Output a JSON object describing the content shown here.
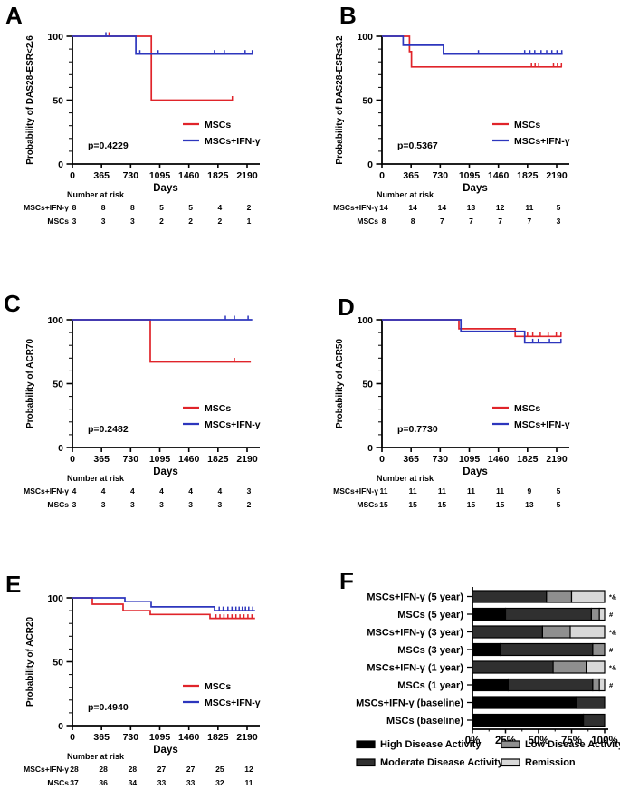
{
  "figure": {
    "panels": [
      {
        "letter": "A"
      },
      {
        "letter": "B"
      },
      {
        "letter": "C"
      },
      {
        "letter": "D"
      },
      {
        "letter": "E"
      },
      {
        "letter": "F"
      }
    ]
  },
  "colors": {
    "mscs_red": "#e0242a",
    "ifn_blue": "#2d36bd"
  },
  "chart_data": [
    {
      "panel": "A",
      "type": "line",
      "subtype": "kaplan-meier",
      "ylabel": "Probability of DAS28-ESR<2.6",
      "xlabel": "Days",
      "xticks": [
        0,
        365,
        730,
        1095,
        1460,
        1825,
        2190
      ],
      "yticks": [
        0,
        50,
        100
      ],
      "xlim": [
        0,
        2400
      ],
      "ylim": [
        0,
        100
      ],
      "p_value": "p=0.4229",
      "legend": [
        {
          "name": "MSCs",
          "color": "#e0242a"
        },
        {
          "name": "MSCs+IFN-γ",
          "color": "#2d36bd"
        }
      ],
      "series": [
        {
          "name": "MSCs",
          "color": "#e0242a",
          "steps": [
            [
              0,
              100
            ],
            [
              990,
              100
            ],
            [
              990,
              50
            ],
            [
              2005,
              50
            ]
          ],
          "censors": [
            [
              460,
              100
            ],
            [
              2005,
              50
            ]
          ]
        },
        {
          "name": "MSCs+IFN-γ",
          "color": "#2d36bd",
          "steps": [
            [
              0,
              100
            ],
            [
              795,
              100
            ],
            [
              795,
              86
            ],
            [
              2260,
              86
            ]
          ],
          "censors": [
            [
              420,
              100
            ],
            [
              845,
              86
            ],
            [
              1075,
              86
            ],
            [
              1780,
              86
            ],
            [
              1905,
              86
            ],
            [
              2165,
              86
            ],
            [
              2255,
              86
            ]
          ]
        }
      ],
      "risk_table": {
        "header": "Number at risk",
        "rows": [
          {
            "name": "MSCs+IFN-γ",
            "color": "#2d36bd",
            "values": [
              8,
              8,
              8,
              5,
              5,
              4,
              2
            ]
          },
          {
            "name": "MSCs",
            "color": "#e0242a",
            "values": [
              3,
              3,
              3,
              2,
              2,
              2,
              1
            ]
          }
        ]
      },
      "layout": {
        "plot_top": 40
      }
    },
    {
      "panel": "B",
      "type": "line",
      "subtype": "kaplan-meier",
      "ylabel": "Probability of DAS28-ESR≤3.2",
      "xlabel": "Days",
      "xticks": [
        0,
        365,
        730,
        1095,
        1460,
        1825,
        2190
      ],
      "yticks": [
        0,
        50,
        100
      ],
      "xlim": [
        0,
        2400
      ],
      "ylim": [
        0,
        100
      ],
      "p_value": "p=0.5367",
      "legend": [
        {
          "name": "MSCs",
          "color": "#e0242a"
        },
        {
          "name": "MSCs+IFN-γ",
          "color": "#2d36bd"
        }
      ],
      "series": [
        {
          "name": "MSCs",
          "color": "#e0242a",
          "steps": [
            [
              0,
              100
            ],
            [
              345,
              100
            ],
            [
              345,
              88
            ],
            [
              370,
              88
            ],
            [
              370,
              76
            ],
            [
              2255,
              76
            ]
          ],
          "censors": [
            [
              1875,
              76
            ],
            [
              1920,
              76
            ],
            [
              1965,
              76
            ],
            [
              2150,
              76
            ],
            [
              2200,
              76
            ],
            [
              2250,
              76
            ]
          ]
        },
        {
          "name": "MSCs+IFN-γ",
          "color": "#2d36bd",
          "steps": [
            [
              0,
              100
            ],
            [
              265,
              100
            ],
            [
              265,
              93
            ],
            [
              770,
              93
            ],
            [
              770,
              86
            ],
            [
              2265,
              86
            ]
          ],
          "censors": [
            [
              1210,
              86
            ],
            [
              1790,
              86
            ],
            [
              1855,
              86
            ],
            [
              1915,
              86
            ],
            [
              1995,
              86
            ],
            [
              2065,
              86
            ],
            [
              2130,
              86
            ],
            [
              2195,
              86
            ],
            [
              2255,
              86
            ]
          ]
        }
      ],
      "risk_table": {
        "header": "Number at risk",
        "rows": [
          {
            "name": "MSCs+IFN-γ",
            "color": "#2d36bd",
            "values": [
              14,
              14,
              14,
              13,
              12,
              11,
              5
            ]
          },
          {
            "name": "MSCs",
            "color": "#e0242a",
            "values": [
              8,
              8,
              7,
              7,
              7,
              7,
              3
            ]
          }
        ]
      },
      "layout": {
        "plot_top": 40
      }
    },
    {
      "panel": "C",
      "type": "line",
      "subtype": "kaplan-meier",
      "ylabel": "Probability of ACR70",
      "xlabel": "Days",
      "xticks": [
        0,
        365,
        730,
        1095,
        1460,
        1825,
        2190
      ],
      "yticks": [
        0,
        50,
        100
      ],
      "xlim": [
        0,
        2400
      ],
      "ylim": [
        0,
        100
      ],
      "p_value": "p=0.2482",
      "legend": [
        {
          "name": "MSCs",
          "color": "#e0242a"
        },
        {
          "name": "MSCs+IFN-γ",
          "color": "#2d36bd"
        }
      ],
      "series": [
        {
          "name": "MSCs",
          "color": "#e0242a",
          "steps": [
            [
              0,
              100
            ],
            [
              976,
              100
            ],
            [
              976,
              67
            ],
            [
              2236,
              67
            ]
          ],
          "censors": [
            [
              2031,
              67
            ]
          ]
        },
        {
          "name": "MSCs+IFN-γ",
          "color": "#2d36bd",
          "steps": [
            [
              0,
              100
            ],
            [
              2255,
              100
            ]
          ],
          "censors": [
            [
              1918,
              100
            ],
            [
              2031,
              100
            ],
            [
              2202,
              100
            ]
          ]
        }
      ],
      "risk_table": {
        "header": "Number at risk",
        "rows": [
          {
            "name": "MSCs+IFN-γ",
            "color": "#2d36bd",
            "values": [
              4,
              4,
              4,
              4,
              4,
              4,
              3
            ]
          },
          {
            "name": "MSCs",
            "color": "#e0242a",
            "values": [
              3,
              3,
              3,
              3,
              3,
              3,
              2
            ]
          }
        ]
      },
      "layout": {
        "plot_top": 53
      }
    },
    {
      "panel": "D",
      "type": "line",
      "subtype": "kaplan-meier",
      "ylabel": "Probability of ACR50",
      "xlabel": "Days",
      "xticks": [
        0,
        365,
        730,
        1095,
        1460,
        1825,
        2190
      ],
      "yticks": [
        0,
        50,
        100
      ],
      "xlim": [
        0,
        2400
      ],
      "ylim": [
        0,
        100
      ],
      "p_value": "p=0.7730",
      "legend": [
        {
          "name": "MSCs",
          "color": "#e0242a"
        },
        {
          "name": "MSCs+IFN-γ",
          "color": "#2d36bd"
        }
      ],
      "series": [
        {
          "name": "MSCs",
          "color": "#e0242a",
          "steps": [
            [
              0,
              100
            ],
            [
              965,
              100
            ],
            [
              965,
              93
            ],
            [
              1670,
              93
            ],
            [
              1670,
              87
            ],
            [
              2250,
              87
            ]
          ],
          "censors": [
            [
              1825,
              87
            ],
            [
              1890,
              87
            ],
            [
              1985,
              87
            ],
            [
              2085,
              87
            ],
            [
              2185,
              87
            ],
            [
              2245,
              87
            ]
          ]
        },
        {
          "name": "MSCs+IFN-γ",
          "color": "#2d36bd",
          "steps": [
            [
              0,
              100
            ],
            [
              990,
              100
            ],
            [
              990,
              91
            ],
            [
              1790,
              91
            ],
            [
              1790,
              82
            ],
            [
              2250,
              82
            ]
          ],
          "censors": [
            [
              1890,
              82
            ],
            [
              1960,
              82
            ],
            [
              2100,
              82
            ],
            [
              2245,
              82
            ]
          ]
        }
      ],
      "risk_table": {
        "header": "Number at risk",
        "rows": [
          {
            "name": "MSCs+IFN-γ",
            "color": "#2d36bd",
            "values": [
              11,
              11,
              11,
              11,
              11,
              9,
              5
            ]
          },
          {
            "name": "MSCs",
            "color": "#e0242a",
            "values": [
              15,
              15,
              15,
              15,
              15,
              13,
              5
            ]
          }
        ]
      },
      "layout": {
        "plot_top": 53
      }
    },
    {
      "panel": "E",
      "type": "line",
      "subtype": "kaplan-meier",
      "ylabel": "Probability of ACR20",
      "xlabel": "Days",
      "xticks": [
        0,
        365,
        730,
        1095,
        1460,
        1825,
        2190
      ],
      "yticks": [
        0,
        50,
        100
      ],
      "xlim": [
        0,
        2400
      ],
      "ylim": [
        0,
        100
      ],
      "p_value": "p=0.4940",
      "legend": [
        {
          "name": "MSCs",
          "color": "#e0242a"
        },
        {
          "name": "MSCs+IFN-γ",
          "color": "#2d36bd"
        }
      ],
      "series": [
        {
          "name": "MSCs",
          "color": "#e0242a",
          "steps": [
            [
              0,
              100
            ],
            [
              250,
              100
            ],
            [
              250,
              95
            ],
            [
              635,
              95
            ],
            [
              635,
              90
            ],
            [
              976,
              90
            ],
            [
              976,
              87
            ],
            [
              1725,
              87
            ],
            [
              1725,
              84
            ],
            [
              2290,
              84
            ]
          ],
          "censors": [
            [
              1800,
              84
            ],
            [
              1850,
              84
            ],
            [
              1900,
              84
            ],
            [
              1950,
              84
            ],
            [
              2000,
              84
            ],
            [
              2050,
              84
            ],
            [
              2100,
              84
            ],
            [
              2150,
              84
            ],
            [
              2200,
              84
            ],
            [
              2250,
              84
            ]
          ]
        },
        {
          "name": "MSCs+IFN-γ",
          "color": "#2d36bd",
          "steps": [
            [
              0,
              100
            ],
            [
              658,
              100
            ],
            [
              658,
              97
            ],
            [
              987,
              97
            ],
            [
              987,
              93
            ],
            [
              1782,
              93
            ],
            [
              1782,
              90
            ],
            [
              2290,
              90
            ]
          ],
          "censors": [
            [
              1840,
              90
            ],
            [
              1890,
              90
            ],
            [
              1950,
              90
            ],
            [
              2000,
              90
            ],
            [
              2050,
              90
            ],
            [
              2090,
              90
            ],
            [
              2130,
              90
            ],
            [
              2170,
              90
            ],
            [
              2210,
              90
            ],
            [
              2260,
              90
            ]
          ]
        }
      ],
      "risk_table": {
        "header": "Number at risk",
        "rows": [
          {
            "name": "MSCs+IFN-γ",
            "color": "#2d36bd",
            "values": [
              28,
              28,
              28,
              27,
              27,
              25,
              12
            ]
          },
          {
            "name": "MSCs",
            "color": "#e0242a",
            "values": [
              37,
              36,
              34,
              33,
              33,
              32,
              11
            ]
          }
        ]
      },
      "layout": {
        "plot_top": 60
      }
    },
    {
      "panel": "F",
      "type": "bar",
      "orientation": "horizontal",
      "stacked": true,
      "categories": [
        "MSCs+IFN-γ (5 year)",
        "MSCs (5 year)",
        "MSCs+IFN-γ (3 year)",
        "MSCs (3 year)",
        "MSCs+IFN-γ (1 year)",
        "MSCs (1 year)",
        "MSCs+IFN-γ (baseline)",
        "MSCs (baseline)"
      ],
      "series": [
        {
          "name": "High Disease Activity",
          "color": "#000000",
          "values": [
            0,
            25,
            0,
            21,
            0,
            27,
            79,
            84
          ]
        },
        {
          "name": "Moderate Disease Activity",
          "color": "#303030",
          "values": [
            56,
            65,
            53,
            70,
            61,
            64,
            21,
            16
          ]
        },
        {
          "name": "Low Disease Activity",
          "color": "#8f8f8f",
          "values": [
            19,
            6,
            21,
            9,
            25,
            5,
            0,
            0
          ]
        },
        {
          "name": "Remission",
          "color": "#d8d8d8",
          "values": [
            25,
            4,
            26,
            0,
            14,
            4,
            0,
            0
          ]
        }
      ],
      "annotations": [
        "*&",
        "#",
        "*&",
        "#",
        "*&",
        "#",
        "",
        ""
      ],
      "xticks": [
        "0%",
        "25%",
        "50%",
        "75%",
        "100%"
      ],
      "xlim": [
        0,
        100
      ],
      "legend_position": "bottom"
    }
  ]
}
